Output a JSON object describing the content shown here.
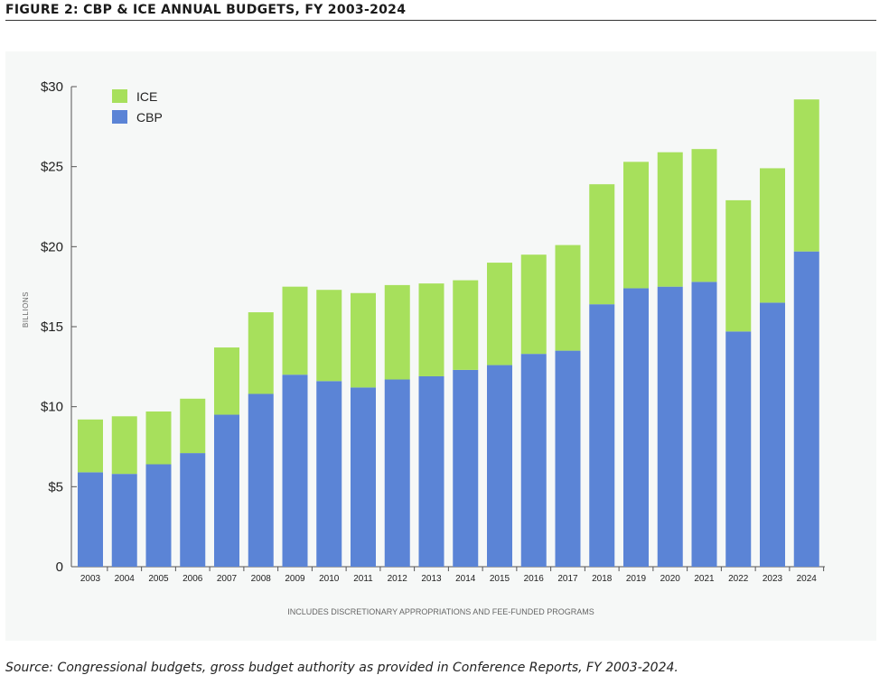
{
  "figure_title": "FIGURE 2: CBP & ICE ANNUAL BUDGETS, FY 2003-2024",
  "source_text": "Source: Congressional budgets, gross budget authority as provided in Conference Reports, FY 2003-2024.",
  "colors": {
    "ICE": "#a7e05c",
    "CBP": "#5b84d6",
    "panel": "#f6f8f7"
  },
  "chart_data": {
    "type": "bar",
    "stacked": true,
    "title": "",
    "xlabel": "",
    "ylabel": "BILLIONS",
    "footnote": "INCLUDES DISCRETIONARY APPROPRIATIONS AND FEE-FUNDED PROGRAMS",
    "ylim": [
      0,
      30
    ],
    "yticks": [
      0,
      5,
      10,
      15,
      20,
      25,
      30
    ],
    "ytick_labels": [
      "0",
      "$5",
      "$10",
      "$15",
      "$20",
      "$25",
      "$30"
    ],
    "grid": false,
    "legend_position": "top-left",
    "legend": [
      "ICE",
      "CBP"
    ],
    "categories": [
      "2003",
      "2004",
      "2005",
      "2006",
      "2007",
      "2008",
      "2009",
      "2010",
      "2011",
      "2012",
      "2013",
      "2014",
      "2015",
      "2016",
      "2017",
      "2018",
      "2019",
      "2020",
      "2021",
      "2022",
      "2023",
      "2024"
    ],
    "series": [
      {
        "name": "CBP",
        "values": [
          5.9,
          5.8,
          6.4,
          7.1,
          9.5,
          10.8,
          12.0,
          11.6,
          11.2,
          11.7,
          11.9,
          12.3,
          12.6,
          13.3,
          13.5,
          16.4,
          17.4,
          17.5,
          17.8,
          14.7,
          16.5,
          19.7
        ]
      },
      {
        "name": "ICE",
        "values": [
          3.3,
          3.6,
          3.3,
          3.4,
          4.2,
          5.1,
          5.5,
          5.7,
          5.9,
          5.9,
          5.8,
          5.6,
          6.4,
          6.2,
          6.6,
          7.5,
          7.9,
          8.4,
          8.3,
          8.2,
          8.4,
          9.5
        ]
      }
    ]
  }
}
